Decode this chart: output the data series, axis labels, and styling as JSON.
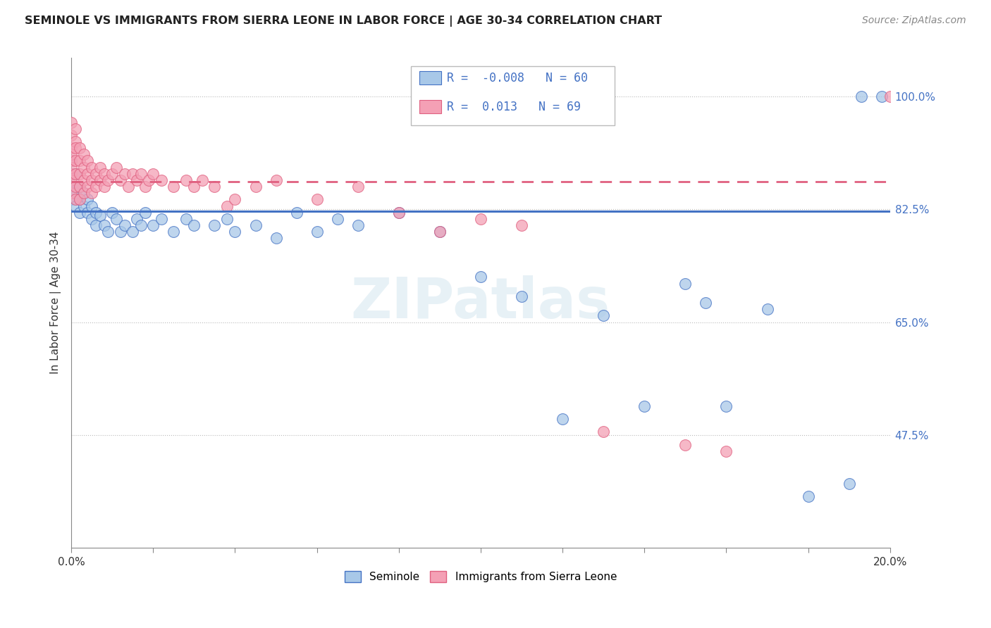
{
  "title": "SEMINOLE VS IMMIGRANTS FROM SIERRA LEONE IN LABOR FORCE | AGE 30-34 CORRELATION CHART",
  "source": "Source: ZipAtlas.com",
  "ylabel": "In Labor Force | Age 30-34",
  "legend_label1": "Seminole",
  "legend_label2": "Immigrants from Sierra Leone",
  "R1": -0.008,
  "N1": 60,
  "R2": 0.013,
  "N2": 69,
  "xmin": 0.0,
  "xmax": 0.2,
  "ymin": 0.3,
  "ymax": 1.06,
  "yticks_right": [
    0.475,
    0.65,
    0.825,
    1.0
  ],
  "ytick_labels_right": [
    "47.5%",
    "65.0%",
    "82.5%",
    "100.0%"
  ],
  "color_blue": "#a8c8e8",
  "color_pink": "#f4a0b5",
  "trendline_blue": "#4472c4",
  "trendline_pink": "#e06080",
  "watermark": "ZIPatlas",
  "blue_trendline_y": 0.822,
  "pink_trendline_y": 0.868,
  "blue_scatter_x": [
    0.0,
    0.0,
    0.0,
    0.0,
    0.001,
    0.001,
    0.001,
    0.001,
    0.001,
    0.002,
    0.002,
    0.002,
    0.003,
    0.003,
    0.004,
    0.004,
    0.005,
    0.005,
    0.006,
    0.006,
    0.007,
    0.008,
    0.009,
    0.01,
    0.011,
    0.012,
    0.013,
    0.015,
    0.016,
    0.017,
    0.018,
    0.02,
    0.022,
    0.025,
    0.028,
    0.03,
    0.035,
    0.038,
    0.04,
    0.045,
    0.05,
    0.055,
    0.06,
    0.065,
    0.07,
    0.08,
    0.09,
    0.1,
    0.11,
    0.12,
    0.13,
    0.14,
    0.15,
    0.155,
    0.16,
    0.17,
    0.18,
    0.19,
    0.193,
    0.198
  ],
  "blue_scatter_y": [
    0.84,
    0.86,
    0.88,
    0.9,
    0.84,
    0.86,
    0.88,
    0.83,
    0.85,
    0.84,
    0.86,
    0.82,
    0.83,
    0.85,
    0.84,
    0.82,
    0.83,
    0.81,
    0.82,
    0.8,
    0.815,
    0.8,
    0.79,
    0.82,
    0.81,
    0.79,
    0.8,
    0.79,
    0.81,
    0.8,
    0.82,
    0.8,
    0.81,
    0.79,
    0.81,
    0.8,
    0.8,
    0.81,
    0.79,
    0.8,
    0.78,
    0.82,
    0.79,
    0.81,
    0.8,
    0.82,
    0.79,
    0.72,
    0.69,
    0.5,
    0.66,
    0.52,
    0.71,
    0.68,
    0.52,
    0.67,
    0.38,
    0.4,
    1.0,
    1.0
  ],
  "pink_scatter_x": [
    0.0,
    0.0,
    0.0,
    0.0,
    0.0,
    0.0,
    0.0,
    0.0,
    0.0,
    0.001,
    0.001,
    0.001,
    0.001,
    0.001,
    0.001,
    0.001,
    0.002,
    0.002,
    0.002,
    0.002,
    0.002,
    0.003,
    0.003,
    0.003,
    0.003,
    0.004,
    0.004,
    0.004,
    0.005,
    0.005,
    0.005,
    0.006,
    0.006,
    0.007,
    0.007,
    0.008,
    0.008,
    0.009,
    0.01,
    0.011,
    0.012,
    0.013,
    0.014,
    0.015,
    0.016,
    0.017,
    0.018,
    0.019,
    0.02,
    0.022,
    0.025,
    0.028,
    0.03,
    0.032,
    0.035,
    0.038,
    0.04,
    0.045,
    0.05,
    0.06,
    0.07,
    0.08,
    0.09,
    0.1,
    0.11,
    0.13,
    0.15,
    0.16,
    0.2
  ],
  "pink_scatter_y": [
    0.92,
    0.94,
    0.96,
    0.88,
    0.9,
    0.85,
    0.87,
    0.89,
    0.91,
    0.93,
    0.95,
    0.88,
    0.9,
    0.92,
    0.86,
    0.84,
    0.88,
    0.9,
    0.92,
    0.86,
    0.84,
    0.89,
    0.91,
    0.87,
    0.85,
    0.88,
    0.9,
    0.86,
    0.87,
    0.89,
    0.85,
    0.88,
    0.86,
    0.87,
    0.89,
    0.86,
    0.88,
    0.87,
    0.88,
    0.89,
    0.87,
    0.88,
    0.86,
    0.88,
    0.87,
    0.88,
    0.86,
    0.87,
    0.88,
    0.87,
    0.86,
    0.87,
    0.86,
    0.87,
    0.86,
    0.83,
    0.84,
    0.86,
    0.87,
    0.84,
    0.86,
    0.82,
    0.79,
    0.81,
    0.8,
    0.48,
    0.46,
    0.45,
    1.0
  ]
}
